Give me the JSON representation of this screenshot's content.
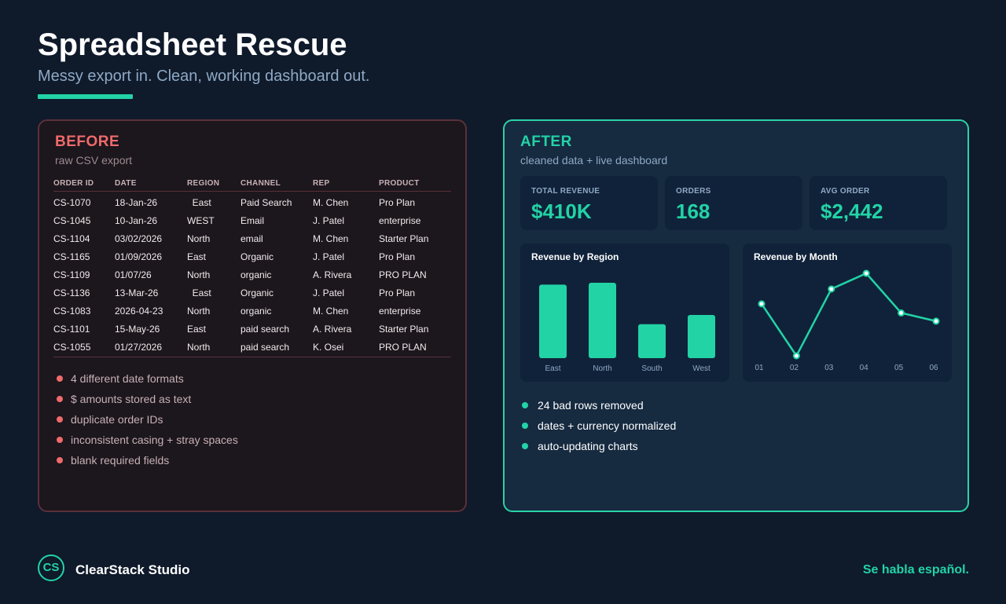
{
  "header": {
    "title": "Spreadsheet Rescue",
    "subtitle": "Messy export in. Clean, working dashboard out."
  },
  "before": {
    "heading": "BEFORE",
    "subheading": "raw CSV export",
    "columns": [
      "ORDER ID",
      "DATE",
      "REGION",
      "CHANNEL",
      "REP",
      "PRODUCT"
    ],
    "rows": [
      [
        "CS-1070",
        "18-Jan-26",
        "  East",
        "Paid Search",
        "M. Chen",
        "Pro Plan"
      ],
      [
        "CS-1045",
        "10-Jan-26",
        "WEST",
        "Email",
        "J. Patel",
        "enterprise"
      ],
      [
        "CS-1104",
        "03/02/2026",
        "North",
        "email",
        "M. Chen",
        "Starter Plan"
      ],
      [
        "CS-1165",
        "01/09/2026",
        "East",
        "Organic",
        "J. Patel",
        "Pro Plan"
      ],
      [
        "CS-1109",
        "01/07/26",
        "North",
        "organic",
        "A. Rivera",
        "PRO PLAN"
      ],
      [
        "CS-1136",
        "13-Mar-26",
        "  East",
        "Organic",
        "J. Patel",
        "Pro Plan"
      ],
      [
        "CS-1083",
        "2026-04-23",
        "North",
        "organic",
        "M. Chen",
        "enterprise"
      ],
      [
        "CS-1101",
        "15-May-26",
        "East",
        "paid search",
        "A. Rivera",
        "Starter Plan"
      ],
      [
        "CS-1055",
        "01/27/2026",
        "North",
        "paid search",
        "K. Osei",
        "PRO PLAN"
      ]
    ],
    "issues": [
      "4 different date formats",
      "$ amounts stored as text",
      "duplicate order IDs",
      "inconsistent casing + stray spaces",
      "blank required fields"
    ]
  },
  "after": {
    "heading": "AFTER",
    "subheading": "cleaned data + live dashboard",
    "kpis": [
      {
        "label": "TOTAL REVENUE",
        "value": "$410K"
      },
      {
        "label": "ORDERS",
        "value": "168"
      },
      {
        "label": "AVG ORDER",
        "value": "$2,442"
      }
    ],
    "results": [
      "24 bad rows removed",
      "dates + currency normalized",
      "auto-updating charts"
    ]
  },
  "chart_data": [
    {
      "type": "bar",
      "title": "Revenue by Region",
      "categories": [
        "East",
        "North",
        "South",
        "West"
      ],
      "values": [
        0.8,
        0.82,
        0.37,
        0.47
      ],
      "ylim": [
        0,
        1
      ],
      "color": "#22d3a6",
      "grid": false
    },
    {
      "type": "line",
      "title": "Revenue by Month",
      "x": [
        "01",
        "02",
        "03",
        "04",
        "05",
        "06"
      ],
      "values": [
        0.63,
        0.0,
        0.81,
        1.0,
        0.52,
        0.42
      ],
      "ylim": [
        0,
        1
      ],
      "color": "#22d3a6",
      "grid": false
    }
  ],
  "footer": {
    "logo": "CS",
    "brand": "ClearStack Studio",
    "tagline": "Se habla español."
  }
}
